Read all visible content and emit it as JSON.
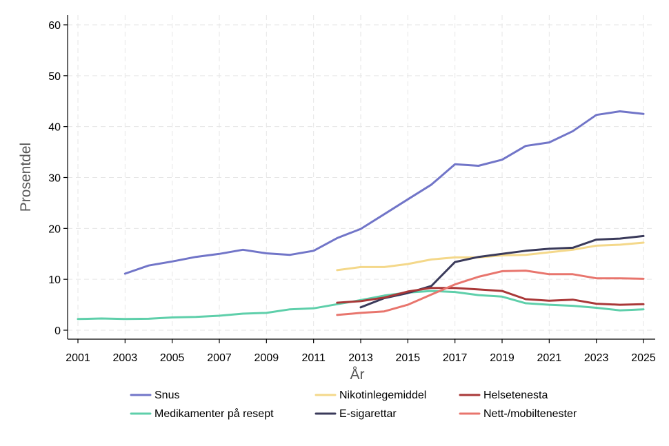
{
  "chart_data": {
    "type": "line",
    "title": "",
    "xlabel": "År",
    "ylabel": "Prosentdel",
    "xlim": [
      2001,
      2025
    ],
    "ylim": [
      0,
      60
    ],
    "x_ticks": [
      2001,
      2003,
      2005,
      2007,
      2009,
      2011,
      2013,
      2015,
      2017,
      2019,
      2021,
      2023,
      2025
    ],
    "y_ticks": [
      0,
      10,
      20,
      30,
      40,
      50,
      60
    ],
    "grid": true,
    "legend_position": "bottom",
    "series": [
      {
        "name": "Snus",
        "color": "#7175c8",
        "x": [
          2003,
          2004,
          2005,
          2006,
          2007,
          2008,
          2009,
          2010,
          2011,
          2012,
          2013,
          2014,
          2015,
          2016,
          2017,
          2018,
          2019,
          2020,
          2021,
          2022,
          2023,
          2024,
          2025
        ],
        "values": [
          11.1,
          12.7,
          13.5,
          14.4,
          15.0,
          15.8,
          15.1,
          14.8,
          15.6,
          18.1,
          19.9,
          22.8,
          25.7,
          28.6,
          32.6,
          32.3,
          33.5,
          36.2,
          36.9,
          39.1,
          42.3,
          43.0,
          42.5
        ]
      },
      {
        "name": "Medikamenter på resept",
        "color": "#5ecfaa",
        "x": [
          2001,
          2002,
          2003,
          2004,
          2005,
          2006,
          2007,
          2008,
          2009,
          2010,
          2011,
          2012,
          2013,
          2014,
          2015,
          2016,
          2017,
          2018,
          2019,
          2020,
          2021,
          2022,
          2023,
          2024,
          2025
        ],
        "values": [
          2.2,
          2.3,
          2.2,
          2.25,
          2.5,
          2.6,
          2.85,
          3.25,
          3.4,
          4.1,
          4.3,
          5.1,
          5.9,
          6.8,
          7.4,
          7.7,
          7.5,
          6.9,
          6.6,
          5.3,
          5.0,
          4.8,
          4.4,
          3.9,
          4.1
        ]
      },
      {
        "name": "Nikotinlegemiddel",
        "color": "#f4d88a",
        "x": [
          2012,
          2013,
          2014,
          2015,
          2016,
          2017,
          2018,
          2019,
          2020,
          2021,
          2022,
          2023,
          2024,
          2025
        ],
        "values": [
          11.8,
          12.4,
          12.4,
          13.0,
          13.9,
          14.3,
          14.3,
          14.7,
          14.8,
          15.3,
          15.8,
          16.6,
          16.8,
          17.2
        ]
      },
      {
        "name": "E-sigarettar",
        "color": "#3a3a5a",
        "x": [
          2013,
          2014,
          2015,
          2016,
          2017,
          2018,
          2019,
          2020,
          2021,
          2022,
          2023,
          2024,
          2025
        ],
        "values": [
          4.5,
          6.3,
          7.3,
          8.7,
          13.4,
          14.4,
          15.0,
          15.6,
          16.0,
          16.2,
          17.8,
          18.0,
          18.5
        ]
      },
      {
        "name": "Helsetenesta",
        "color": "#a93838",
        "x": [
          2012,
          2013,
          2014,
          2015,
          2016,
          2017,
          2018,
          2019,
          2020,
          2021,
          2022,
          2023,
          2024,
          2025
        ],
        "values": [
          5.4,
          5.7,
          6.4,
          7.6,
          8.3,
          8.3,
          8.0,
          7.7,
          6.1,
          5.8,
          6.0,
          5.2,
          5.0,
          5.1
        ]
      },
      {
        "name": "Nett-/mobiltenester",
        "color": "#e8756d",
        "x": [
          2012,
          2013,
          2014,
          2015,
          2016,
          2017,
          2018,
          2019,
          2020,
          2021,
          2022,
          2023,
          2024,
          2025
        ],
        "values": [
          3.0,
          3.4,
          3.7,
          5.0,
          7.0,
          9.0,
          10.5,
          11.6,
          11.7,
          11.0,
          11.0,
          10.2,
          10.2,
          10.1
        ]
      }
    ],
    "legend_order": [
      "Snus",
      "Medikamenter på resept",
      "Nikotinlegemiddel",
      "E-sigarettar",
      "Helsetenesta",
      "Nett-/mobiltenester"
    ]
  }
}
